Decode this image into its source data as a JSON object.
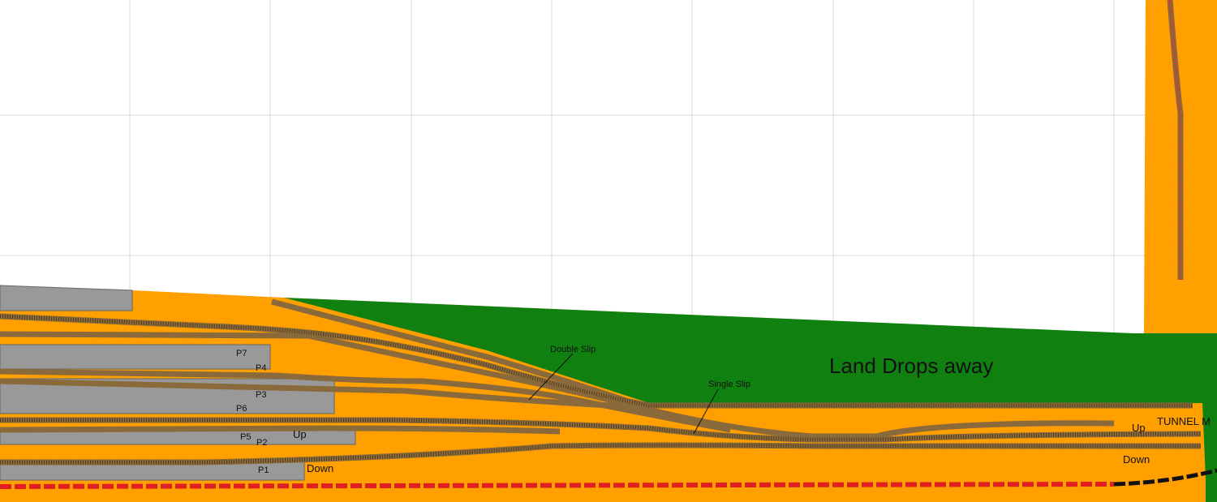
{
  "labels": {
    "double_slip": "Double Slip",
    "single_slip": "Single Slip",
    "land": "Land Drops away",
    "tunnel": "TUNNEL M"
  },
  "platforms": [
    "P7",
    "P4",
    "P3",
    "P6",
    "P5",
    "P2",
    "P1"
  ],
  "directions": {
    "left_up": "Up",
    "left_down": "Down",
    "right_up": "Up",
    "right_down": "Down"
  }
}
